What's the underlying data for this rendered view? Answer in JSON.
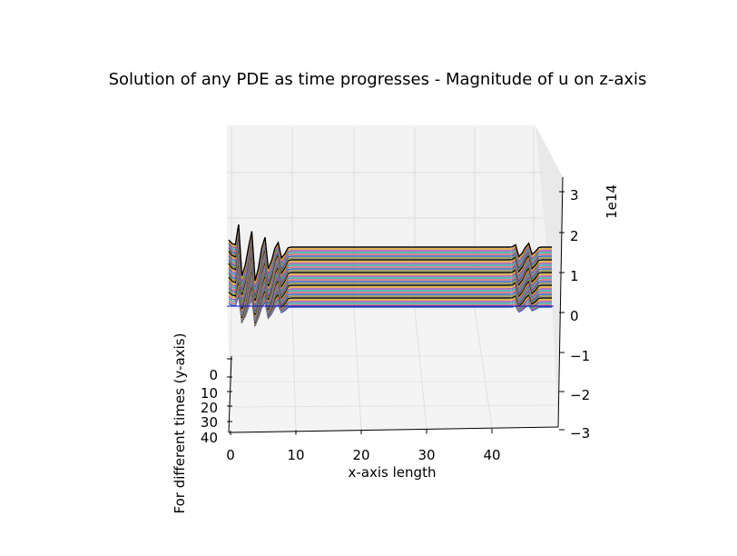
{
  "chart_data": {
    "type": "surface-3d",
    "title": "Solution of any PDE as time progresses - Magnitude of u on z-axis",
    "xlabel": "x-axis length",
    "ylabel": "For different times (y-axis)",
    "zlabel": "",
    "z_offset_label": "1e14",
    "xlim": [
      0,
      49
    ],
    "ylim": [
      0,
      45
    ],
    "zlim": [
      -3,
      3.3
    ],
    "x_ticks": [
      "0",
      "10",
      "20",
      "30",
      "40"
    ],
    "y_ticks": [
      "0",
      "10",
      "20",
      "30",
      "40"
    ],
    "z_ticks": [
      "3",
      "2",
      "1",
      "0",
      "−1",
      "−2",
      "−3"
    ],
    "grid": true,
    "series_colors": [
      "#000000",
      "#e0a020",
      "#9a4fb0",
      "#2aa8a0",
      "#d06070",
      "#3060c0",
      "#8a8a3a"
    ],
    "profile_peaks_1e14": [
      {
        "x": 2,
        "peak": 3.0,
        "trough": -2.4
      },
      {
        "x": 4,
        "peak": 2.1,
        "trough": -2.8
      },
      {
        "x": 6,
        "peak": 1.3,
        "trough": -1.8
      },
      {
        "x": 8,
        "peak": 0.6,
        "trough": -0.9
      },
      {
        "x": 44,
        "peak": 0.3,
        "trough": -0.8
      },
      {
        "x": 46,
        "peak": 0.5,
        "trough": -0.6
      }
    ]
  }
}
